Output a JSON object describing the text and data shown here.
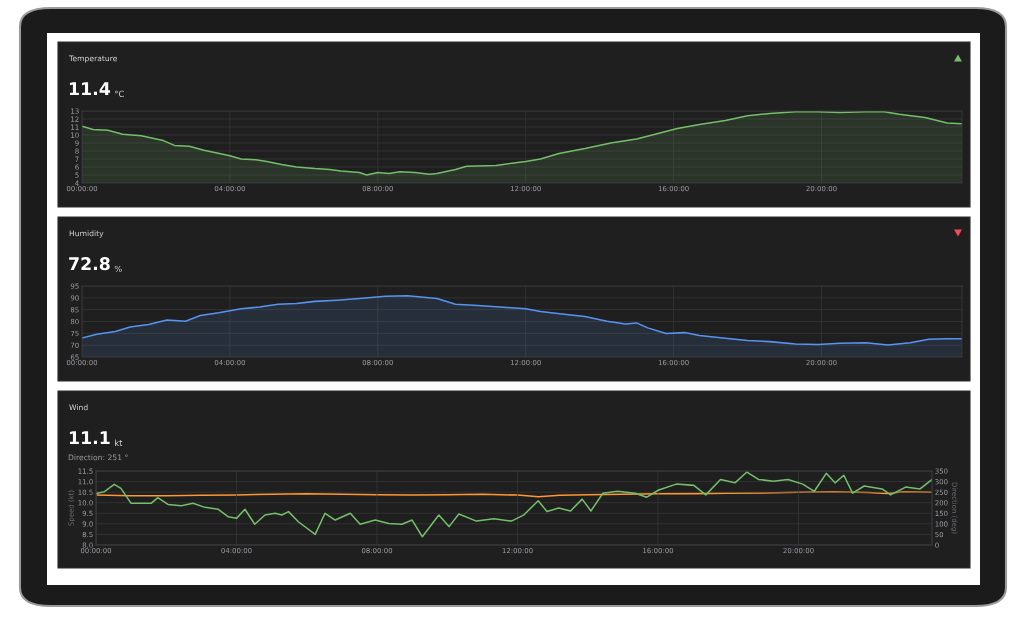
{
  "chart_data": [
    {
      "type": "area",
      "title": "Temperature",
      "annotations": [
        "11.4",
        "°C"
      ],
      "xlim": [
        0,
        23.8
      ],
      "ylim": [
        4,
        13
      ],
      "yticks": [
        4,
        5,
        6,
        7,
        8,
        9,
        10,
        11,
        12,
        13
      ],
      "grid": true,
      "xticks": [
        {
          "value": 0,
          "label": "00:00:00"
        },
        {
          "value": 4,
          "label": "04:00:00"
        },
        {
          "value": 8,
          "label": "08:00:00"
        },
        {
          "value": 12,
          "label": "12:00:00"
        },
        {
          "value": 16,
          "label": "16:00:00"
        },
        {
          "value": 20,
          "label": "20:00:00"
        }
      ],
      "series": [
        {
          "color": "#73bf69",
          "x": [
            0,
            0.3,
            0.7,
            1.1,
            1.6,
            2.2,
            2.5,
            2.9,
            3.3,
            4.0,
            4.3,
            4.7,
            5.0,
            5.4,
            5.8,
            6.3,
            6.7,
            7.0,
            7.5,
            7.7,
            8.0,
            8.3,
            8.6,
            9.0,
            9.4,
            9.6,
            10.1,
            10.4,
            11.2,
            12.0,
            12.4,
            12.9,
            13.6,
            14.3,
            15.0,
            15.5,
            16.1,
            16.7,
            17.4,
            18.0,
            18.6,
            19.3,
            19.9,
            20.5,
            21.2,
            21.7,
            22.1,
            22.8,
            23.4,
            23.8
          ],
          "values": [
            11.1,
            10.7,
            10.6,
            10.1,
            9.9,
            9.3,
            8.7,
            8.6,
            8.1,
            7.4,
            7.0,
            6.9,
            6.7,
            6.3,
            6.0,
            5.8,
            5.7,
            5.5,
            5.3,
            5.0,
            5.3,
            5.2,
            5.4,
            5.3,
            5.1,
            5.2,
            5.7,
            6.1,
            6.2,
            6.7,
            7.0,
            7.7,
            8.3,
            9.0,
            9.5,
            10.1,
            10.8,
            11.3,
            11.8,
            12.4,
            12.7,
            12.9,
            12.9,
            12.8,
            12.9,
            12.9,
            12.6,
            12.2,
            11.5,
            11.4
          ]
        }
      ]
    },
    {
      "type": "area",
      "title": "Humidity",
      "annotations": [
        "72.8",
        "%"
      ],
      "xlim": [
        0,
        23.8
      ],
      "ylim": [
        65,
        95
      ],
      "yticks": [
        65,
        70,
        75,
        80,
        85,
        90,
        95
      ],
      "grid": true,
      "xticks": [
        {
          "value": 0,
          "label": "00:00:00"
        },
        {
          "value": 4,
          "label": "04:00:00"
        },
        {
          "value": 8,
          "label": "08:00:00"
        },
        {
          "value": 12,
          "label": "12:00:00"
        },
        {
          "value": 16,
          "label": "16:00:00"
        },
        {
          "value": 20,
          "label": "20:00:00"
        }
      ],
      "series": [
        {
          "color": "#5794f2",
          "x": [
            0,
            0.4,
            0.9,
            1.3,
            1.8,
            2.3,
            2.8,
            3.2,
            3.7,
            4.3,
            4.8,
            5.3,
            5.8,
            6.3,
            6.9,
            7.5,
            8.2,
            8.8,
            9.6,
            10.1,
            10.7,
            11.3,
            12.0,
            12.4,
            13.1,
            13.6,
            14.2,
            14.7,
            15.0,
            15.3,
            15.8,
            16.3,
            16.7,
            17.4,
            18.0,
            18.6,
            19.3,
            19.9,
            20.5,
            21.2,
            21.8,
            22.4,
            22.9,
            23.4,
            23.8
          ],
          "values": [
            73.0,
            74.6,
            75.8,
            77.7,
            78.7,
            80.6,
            80.1,
            82.5,
            83.7,
            85.4,
            86.1,
            87.3,
            87.6,
            88.5,
            89.0,
            89.7,
            90.7,
            90.9,
            89.7,
            87.3,
            86.8,
            86.1,
            85.4,
            84.2,
            83.0,
            82.1,
            80.1,
            78.9,
            79.4,
            77.3,
            74.9,
            75.3,
            74.1,
            72.9,
            72.0,
            71.5,
            70.5,
            70.3,
            70.8,
            71.0,
            70.1,
            71.0,
            72.5,
            72.7,
            72.7
          ]
        }
      ]
    },
    {
      "type": "line",
      "title": "Wind",
      "annotations": [
        "11.1",
        "kt",
        "Direction: 251 °"
      ],
      "ylabel": "Speed (kt)",
      "y2label": "Direction (deg)",
      "xlim": [
        0,
        23.8
      ],
      "ylim": [
        8,
        11.5
      ],
      "y2lim": [
        0,
        350
      ],
      "grid": true,
      "yticks": [
        {
          "value": 8,
          "label": "8.0"
        },
        8.5,
        {
          "value": 9,
          "label": "9.0"
        },
        9.5,
        {
          "value": 10,
          "label": "10.0"
        },
        10.5,
        {
          "value": 11,
          "label": "11.0"
        },
        11.5
      ],
      "y2ticks": [
        0,
        50,
        100,
        150,
        200,
        250,
        300,
        350
      ],
      "xticks": [
        {
          "value": 0,
          "label": "00:00:00"
        },
        {
          "value": 4,
          "label": "04:00:00"
        },
        {
          "value": 8,
          "label": "08:00:00"
        },
        {
          "value": 12,
          "label": "12:00:00"
        },
        {
          "value": 16,
          "label": "16:00:00"
        },
        {
          "value": 20,
          "label": "20:00:00"
        }
      ],
      "series": [
        {
          "color": "#73bf69",
          "x": [
            0,
            0.24,
            0.52,
            0.71,
            1.0,
            1.38,
            1.57,
            1.76,
            2.05,
            2.43,
            2.76,
            3.1,
            3.48,
            3.76,
            4.0,
            4.24,
            4.52,
            4.81,
            5.1,
            5.29,
            5.48,
            5.76,
            6.24,
            6.52,
            6.81,
            7.24,
            7.52,
            7.95,
            8.33,
            8.71,
            9.0,
            9.29,
            9.76,
            10.05,
            10.33,
            10.83,
            11.33,
            11.83,
            12.17,
            12.59,
            12.84,
            13.17,
            13.51,
            13.84,
            14.09,
            14.43,
            14.85,
            15.35,
            15.68,
            16.02,
            16.52,
            17.02,
            17.36,
            17.78,
            18.19,
            18.53,
            18.86,
            19.28,
            19.7,
            20.12,
            20.45,
            20.79,
            21.04,
            21.29,
            21.54,
            21.87,
            22.38,
            22.62,
            23.05,
            23.46,
            23.8
          ],
          "values": [
            10.44,
            10.52,
            10.87,
            10.68,
            9.97,
            9.97,
            9.97,
            10.24,
            9.92,
            9.86,
            9.97,
            9.78,
            9.69,
            9.34,
            9.26,
            9.69,
            8.98,
            9.42,
            9.5,
            9.42,
            9.58,
            9.1,
            8.5,
            9.5,
            9.18,
            9.5,
            8.98,
            9.18,
            9.02,
            8.98,
            9.18,
            8.39,
            9.42,
            8.87,
            9.47,
            9.13,
            9.24,
            9.13,
            9.41,
            10.09,
            9.58,
            9.75,
            9.61,
            10.17,
            9.61,
            10.45,
            10.54,
            10.45,
            10.26,
            10.6,
            10.88,
            10.82,
            10.37,
            11.1,
            10.94,
            11.45,
            11.1,
            11.02,
            11.1,
            10.88,
            10.54,
            11.39,
            10.94,
            11.3,
            10.45,
            10.79,
            10.65,
            10.37,
            10.74,
            10.65,
            11.1
          ]
        },
        {
          "color": "#ff9830",
          "axis": "y2",
          "x": [
            0,
            1,
            2,
            3,
            4,
            5,
            6,
            7,
            8,
            9,
            10,
            11,
            12,
            12.6,
            13.2,
            14,
            15,
            16,
            17,
            18,
            19,
            20,
            21,
            22,
            22.5,
            23,
            23.8
          ],
          "values": [
            237,
            233,
            233,
            235,
            237,
            240,
            242,
            240,
            238,
            237,
            238,
            240,
            236,
            228,
            235,
            238,
            240,
            242,
            243,
            245,
            246,
            250,
            252,
            248,
            244,
            252,
            250
          ]
        }
      ]
    }
  ]
}
